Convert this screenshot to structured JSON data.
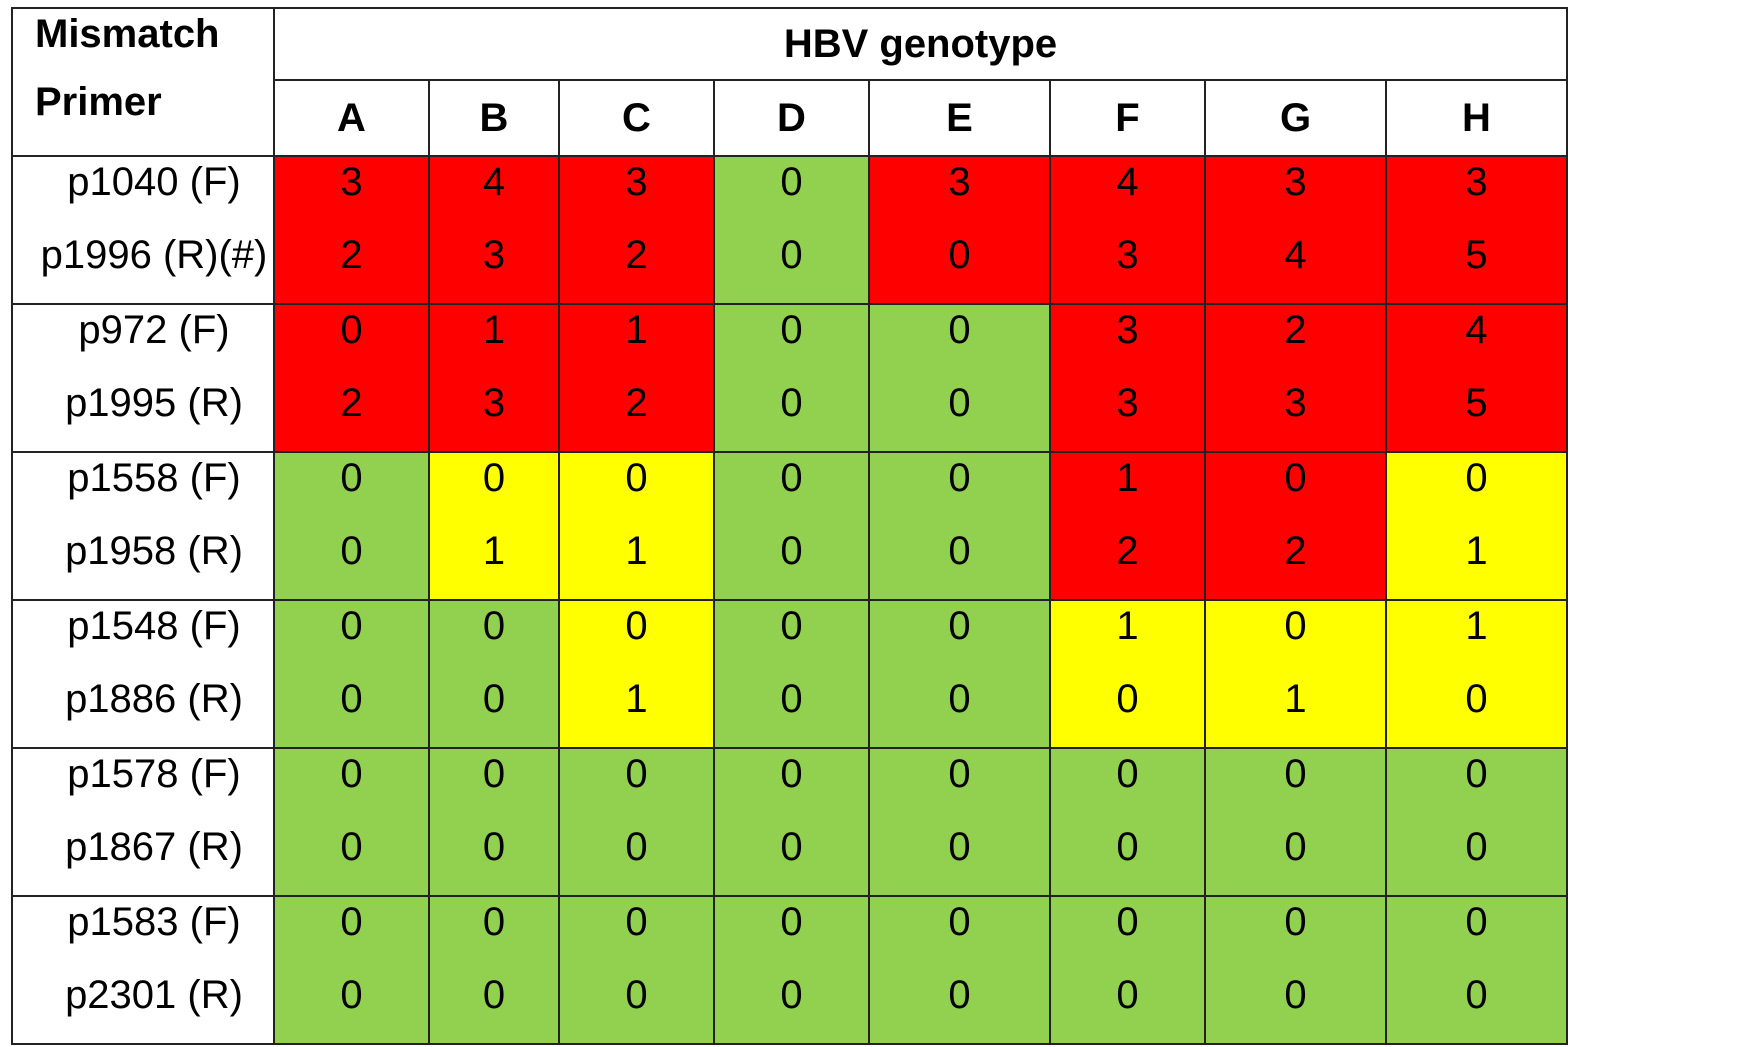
{
  "header": {
    "corner_line1": "Mismatch",
    "corner_line2": "Primer",
    "group_title": "HBV genotype",
    "genotypes": [
      "A",
      "B",
      "C",
      "D",
      "E",
      "F",
      "G",
      "H"
    ]
  },
  "colors": {
    "red": "#ff0000",
    "yellow": "#ffff00",
    "green": "#92d050"
  },
  "chart_data": {
    "type": "table",
    "title": "",
    "columns": [
      "A",
      "B",
      "C",
      "D",
      "E",
      "F",
      "G",
      "H"
    ],
    "groups": [
      {
        "primers": [
          "p1040 (F)",
          "p1996 (R)(#)"
        ],
        "values": [
          [
            3,
            4,
            3,
            0,
            3,
            4,
            3,
            3
          ],
          [
            2,
            3,
            2,
            0,
            0,
            3,
            4,
            5
          ]
        ],
        "colors": [
          "red",
          "red",
          "red",
          "green",
          "red",
          "red",
          "red",
          "red"
        ]
      },
      {
        "primers": [
          "p972 (F)",
          "p1995 (R)"
        ],
        "values": [
          [
            0,
            1,
            1,
            0,
            0,
            3,
            2,
            4
          ],
          [
            2,
            3,
            2,
            0,
            0,
            3,
            3,
            5
          ]
        ],
        "colors": [
          "red",
          "red",
          "red",
          "green",
          "green",
          "red",
          "red",
          "red"
        ]
      },
      {
        "primers": [
          "p1558 (F)",
          "p1958 (R)"
        ],
        "values": [
          [
            0,
            0,
            0,
            0,
            0,
            1,
            0,
            0
          ],
          [
            0,
            1,
            1,
            0,
            0,
            2,
            2,
            1
          ]
        ],
        "colors": [
          "green",
          "yellow",
          "yellow",
          "green",
          "green",
          "red",
          "red",
          "yellow"
        ]
      },
      {
        "primers": [
          "p1548 (F)",
          "p1886 (R)"
        ],
        "values": [
          [
            0,
            0,
            0,
            0,
            0,
            1,
            0,
            1
          ],
          [
            0,
            0,
            1,
            0,
            0,
            0,
            1,
            0
          ]
        ],
        "colors": [
          "green",
          "green",
          "yellow",
          "green",
          "green",
          "yellow",
          "yellow",
          "yellow"
        ]
      },
      {
        "primers": [
          "p1578 (F)",
          "p1867 (R)"
        ],
        "values": [
          [
            0,
            0,
            0,
            0,
            0,
            0,
            0,
            0
          ],
          [
            0,
            0,
            0,
            0,
            0,
            0,
            0,
            0
          ]
        ],
        "colors": [
          "green",
          "green",
          "green",
          "green",
          "green",
          "green",
          "green",
          "green"
        ]
      },
      {
        "primers": [
          "p1583 (F)",
          "p2301 (R)"
        ],
        "values": [
          [
            0,
            0,
            0,
            0,
            0,
            0,
            0,
            0
          ],
          [
            0,
            0,
            0,
            0,
            0,
            0,
            0,
            0
          ]
        ],
        "colors": [
          "green",
          "green",
          "green",
          "green",
          "green",
          "green",
          "green",
          "green"
        ]
      }
    ]
  }
}
